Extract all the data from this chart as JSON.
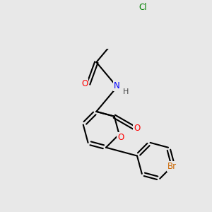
{
  "background_color": "#e8e8e8",
  "bond_color": "#000000",
  "bond_width": 1.5,
  "atom_colors": {
    "O": "#ff0000",
    "N": "#0000ff",
    "Br": "#cc6600",
    "Cl": "#008000",
    "C": "#000000",
    "H": "#444444"
  },
  "font_size": 8.5,
  "figsize": [
    3.0,
    3.0
  ],
  "dpi": 100,
  "bg": "#e8e8e8"
}
